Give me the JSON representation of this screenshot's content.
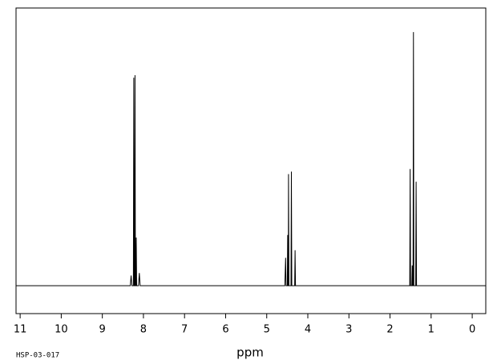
{
  "chart_data": {
    "type": "line",
    "xlabel": "ppm",
    "annotation": "HSP-03-017",
    "x": [
      11.1,
      8.32,
      8.3,
      8.28,
      8.245,
      8.235,
      8.225,
      8.215,
      8.205,
      8.195,
      8.185,
      8.175,
      8.165,
      8.12,
      8.1,
      8.08,
      4.56,
      4.54,
      4.53,
      4.5,
      4.49,
      4.48,
      4.475,
      4.47,
      4.46,
      4.41,
      4.4,
      4.39,
      4.32,
      4.31,
      4.3,
      1.52,
      1.51,
      1.5,
      1.47,
      1.46,
      1.45,
      1.44,
      1.43,
      1.42,
      1.375,
      1.365,
      1.355,
      -0.33
    ],
    "series": [
      {
        "color": "#000000",
        "values": [
          0,
          0,
          4,
          0,
          0,
          82,
          0,
          0,
          83,
          0,
          0,
          19,
          0,
          0,
          5,
          0,
          0,
          11,
          0,
          0,
          20,
          0,
          0,
          44,
          0,
          0,
          45,
          0,
          0,
          14,
          0,
          0,
          46,
          0,
          0,
          8,
          0,
          0,
          100,
          0,
          0,
          41,
          0,
          0
        ]
      }
    ],
    "xlim": [
      11.1,
      -0.33
    ],
    "ylim": [
      -11,
      109.5
    ],
    "xticks": [
      11,
      10,
      9,
      8,
      7,
      6,
      5,
      4,
      3,
      2,
      1,
      0
    ]
  }
}
